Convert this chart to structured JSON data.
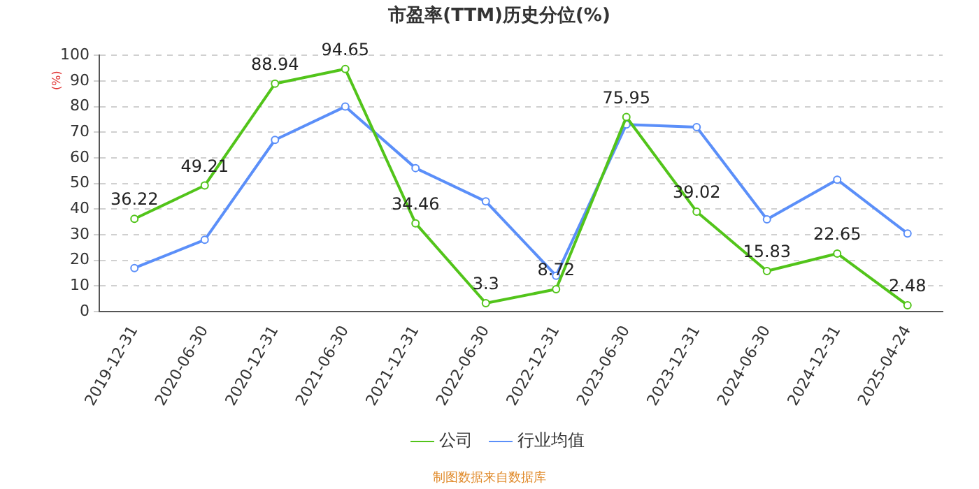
{
  "chart_data": {
    "type": "line",
    "title": "市盈率(TTM)历史分位(%)",
    "ylabel": "(%)",
    "categories": [
      "2019-12-31",
      "2020-06-30",
      "2020-12-31",
      "2021-06-30",
      "2021-12-31",
      "2022-06-30",
      "2022-12-31",
      "2023-06-30",
      "2023-12-31",
      "2024-06-30",
      "2024-12-31",
      "2025-04-24"
    ],
    "series": [
      {
        "name": "公司",
        "color": "#52c41a",
        "values": [
          36.22,
          49.21,
          88.94,
          94.65,
          34.46,
          3.3,
          8.72,
          75.95,
          39.02,
          15.83,
          22.65,
          2.48
        ],
        "value_labels": [
          "36.22",
          "49.21",
          "88.94",
          "94.65",
          "34.46",
          "3.3",
          "8.72",
          "75.95",
          "39.02",
          "15.83",
          "22.65",
          "2.48"
        ]
      },
      {
        "name": "行业均值",
        "color": "#5b8ff9",
        "values": [
          17,
          28,
          67,
          80,
          56,
          43,
          14,
          73,
          72,
          36,
          51.5,
          30.5
        ]
      }
    ],
    "ylim": [
      0,
      100
    ],
    "yticks": [
      0,
      10,
      20,
      30,
      40,
      50,
      60,
      70,
      80,
      90,
      100
    ],
    "grid": "y",
    "legend": "bottom",
    "marker": "circle",
    "line_style": "solid",
    "annotations": [
      "制图数据来自数据库"
    ]
  }
}
